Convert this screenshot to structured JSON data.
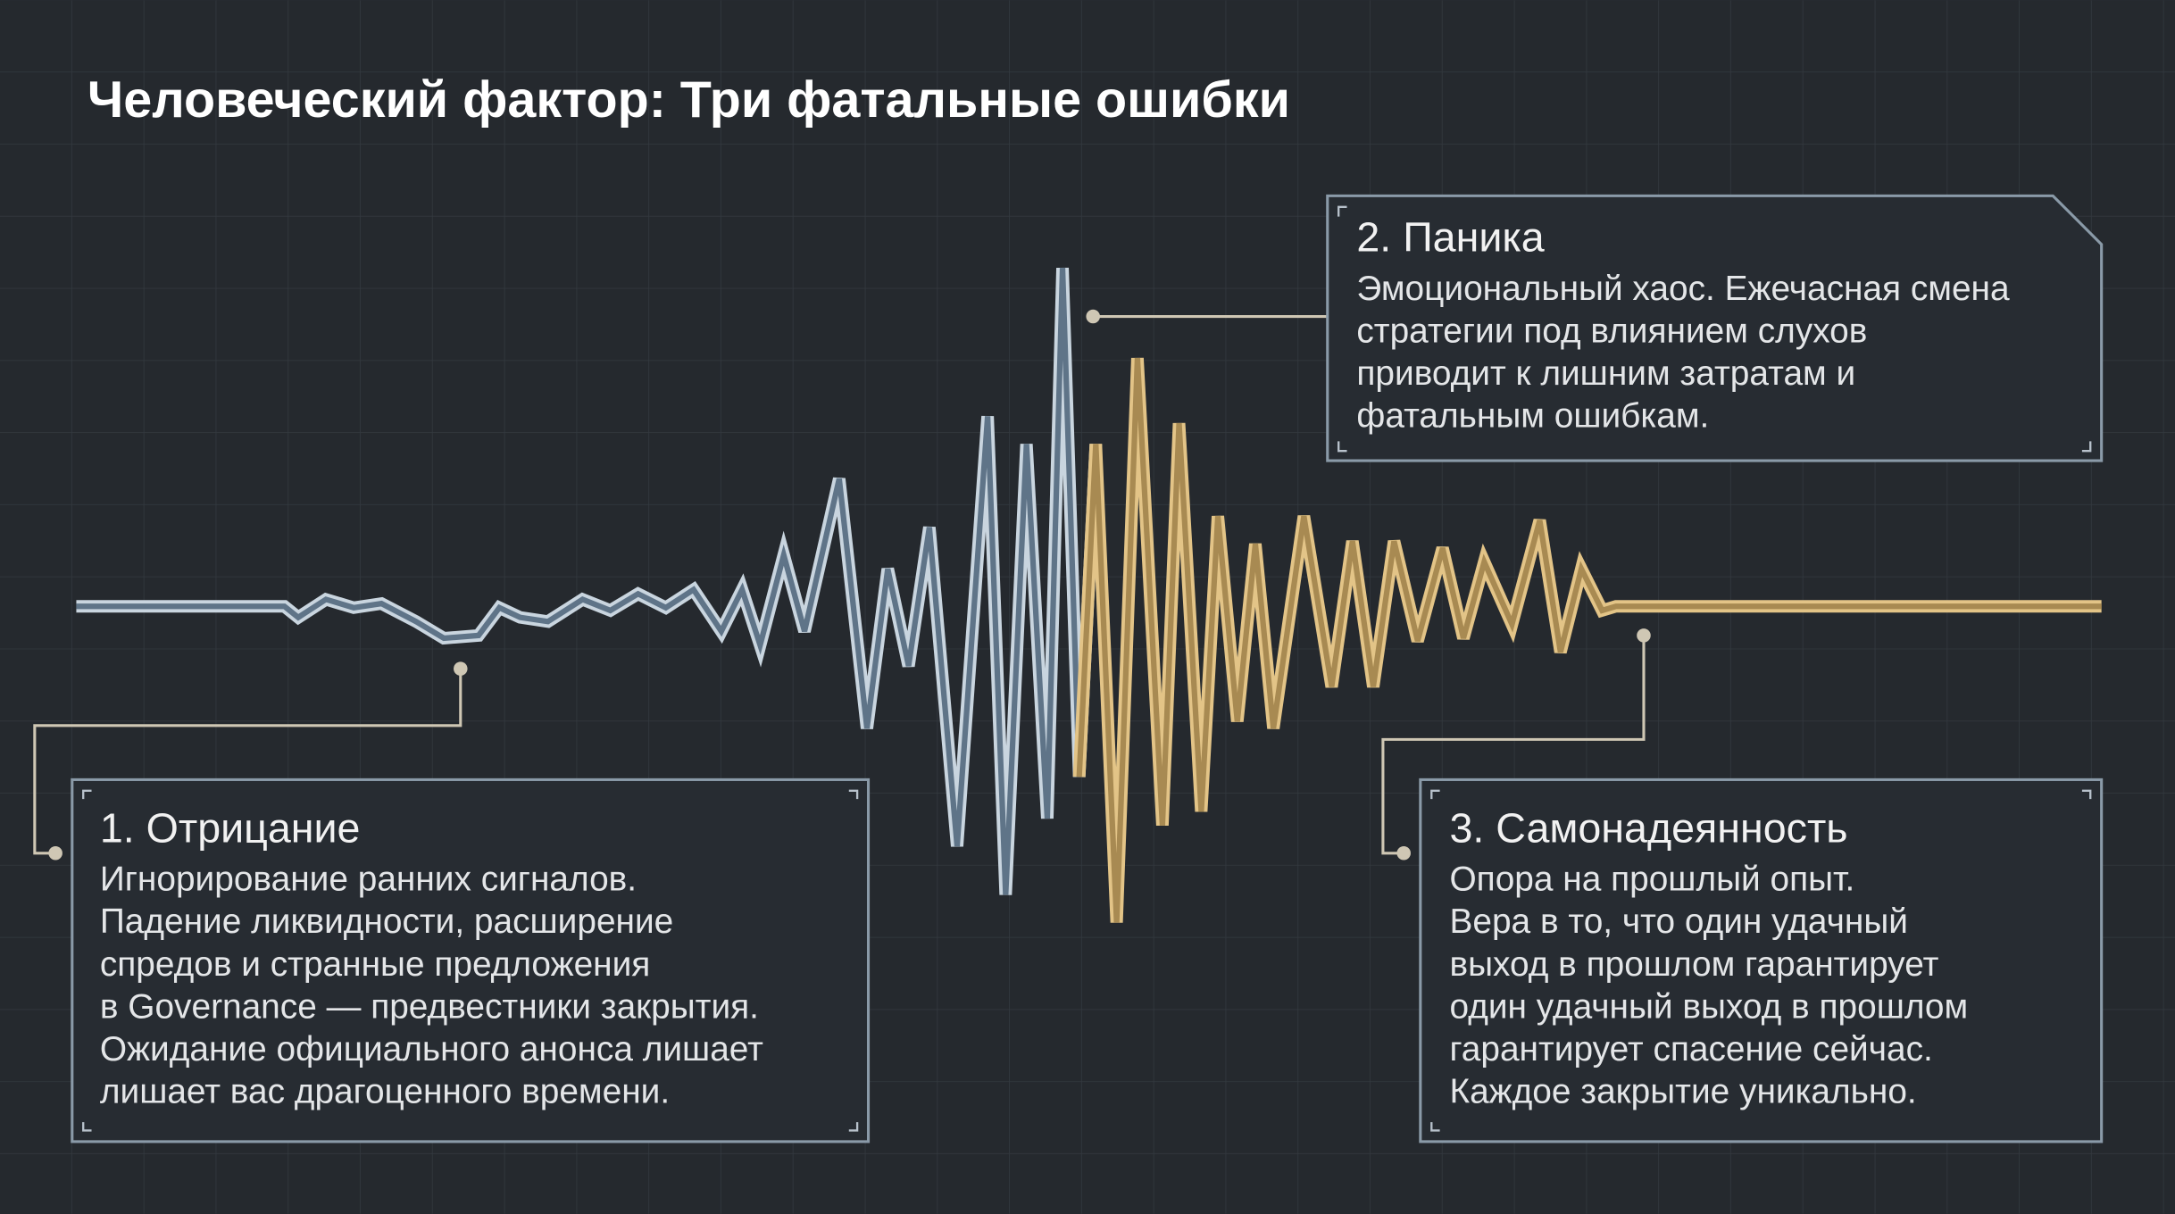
{
  "title": "Человеческий фактор: Три фатальные ошибки",
  "panels": [
    {
      "title": "1. Отрицание",
      "lines": [
        "Игнорирование ранних сигналов.",
        "Падение ликвидности, расширение",
        "спредов и странные предложения",
        "в Governance — предвестники закрытия.",
        "Ожидание официального анонса лишает",
        "лишает вас драгоценного времени."
      ]
    },
    {
      "title": "2. Паника",
      "lines": [
        "Эмоциональный хаос. Ежечасная смена",
        "стратегии под влиянием слухов",
        "приводит к лишним затратам и",
        "фатальным ошибкам."
      ]
    },
    {
      "title": "3. Самонадеянность",
      "lines": [
        "Опора на прошлый опыт.",
        "Вера в то, что один удачный",
        "выход в прошлом гарантирует",
        "один удачный выход в прошлом",
        "гарантирует спасение сейчас.",
        "Каждое закрытие уникально."
      ]
    }
  ]
}
